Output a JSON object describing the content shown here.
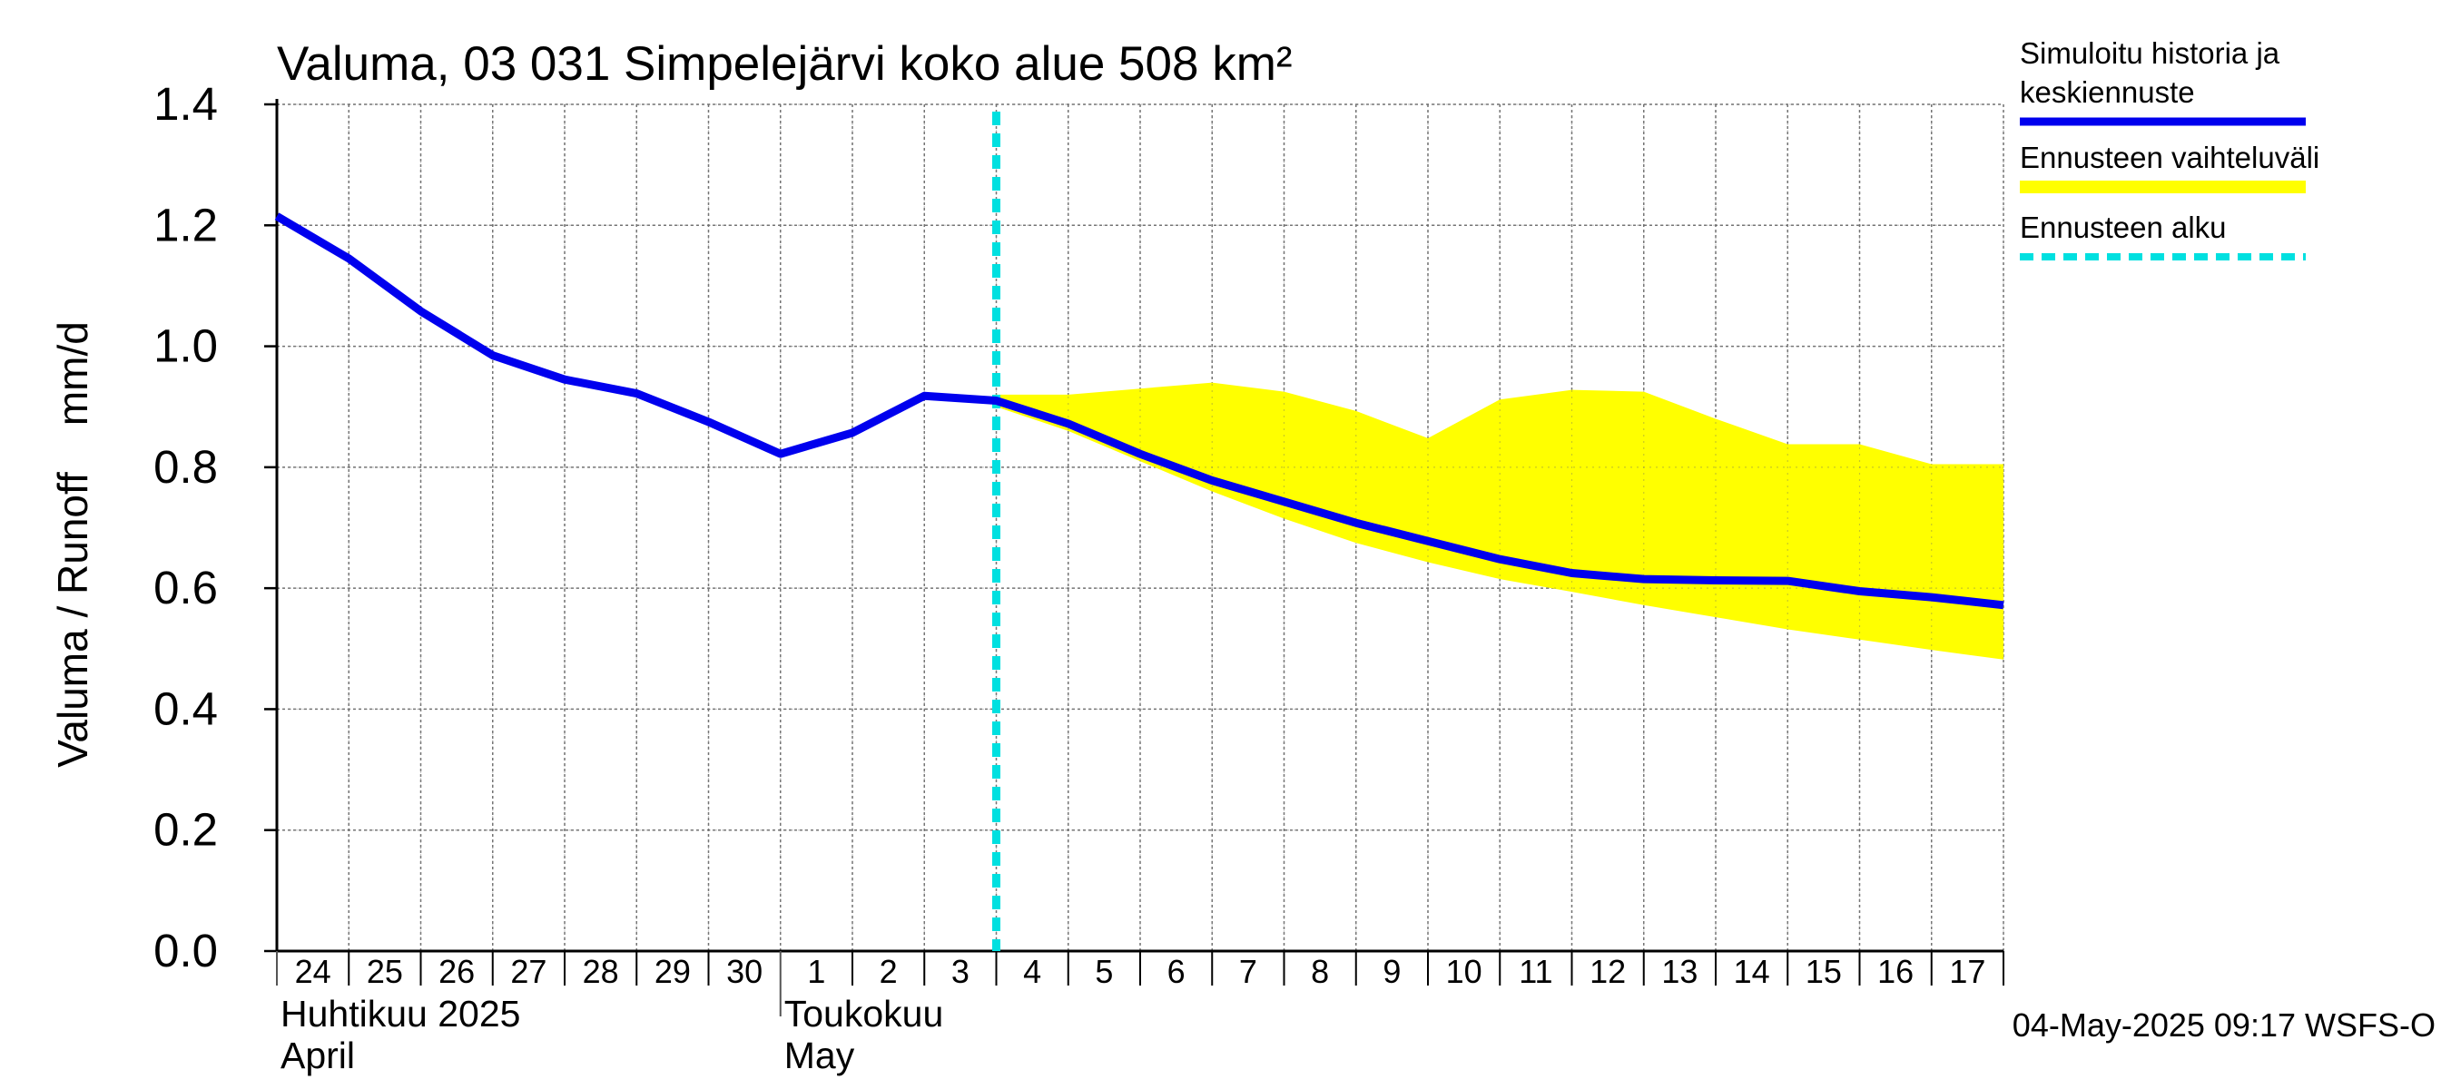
{
  "chart_data": {
    "type": "line",
    "title": "Valuma, 03 031 Simpelejärvi koko alue 508 km²",
    "ylabel": "Valuma / Runoff    mm/d",
    "ylim": [
      0.0,
      1.4
    ],
    "y_ticks": [
      "0.0",
      "0.2",
      "0.4",
      "0.6",
      "0.8",
      "1.0",
      "1.2",
      "1.4"
    ],
    "x_tick_labels": [
      "24",
      "25",
      "26",
      "27",
      "28",
      "29",
      "30",
      "1",
      "2",
      "3",
      "4",
      "5",
      "6",
      "7",
      "8",
      "9",
      "10",
      "11",
      "12",
      "13",
      "14",
      "15",
      "16",
      "17"
    ],
    "month_labels": [
      {
        "line1": "Huhtikuu  2025",
        "line2": "April"
      },
      {
        "line1": "Toukokuu",
        "line2": "May"
      }
    ],
    "dates": [
      "2025-04-24",
      "2025-04-25",
      "2025-04-26",
      "2025-04-27",
      "2025-04-28",
      "2025-04-29",
      "2025-04-30",
      "2025-05-01",
      "2025-05-02",
      "2025-05-03",
      "2025-05-04",
      "2025-05-05",
      "2025-05-06",
      "2025-05-07",
      "2025-05-08",
      "2025-05-09",
      "2025-05-10",
      "2025-05-11",
      "2025-05-12",
      "2025-05-13",
      "2025-05-14",
      "2025-05-15",
      "2025-05-16",
      "2025-05-17",
      "2025-05-18"
    ],
    "forecast_start": "2025-05-04",
    "grid": true,
    "legend_position": "right",
    "series": [
      {
        "name": "Simuloitu historia ja keskiennuste",
        "color": "#0000ee",
        "values": [
          1.215,
          1.145,
          1.058,
          0.985,
          0.945,
          0.922,
          0.875,
          0.822,
          0.857,
          0.918,
          0.91,
          0.872,
          0.822,
          0.778,
          0.743,
          0.708,
          0.678,
          0.648,
          0.625,
          0.615,
          0.613,
          0.612,
          0.595,
          0.585,
          0.572
        ]
      }
    ],
    "band": {
      "name": "Ennusteen vaihteluväli",
      "color": "#ffff00",
      "start": "2025-05-04",
      "upper": [
        0.92,
        0.92,
        0.93,
        0.94,
        0.925,
        0.893,
        0.848,
        0.912,
        0.928,
        0.925,
        0.88,
        0.838,
        0.838,
        0.805,
        0.805
      ],
      "lower": [
        0.9,
        0.86,
        0.81,
        0.76,
        0.715,
        0.675,
        0.643,
        0.615,
        0.594,
        0.572,
        0.552,
        0.532,
        0.515,
        0.498,
        0.482
      ]
    },
    "forecast_marker": {
      "name": "Ennusteen alku",
      "color": "#00e0e0"
    },
    "legend": [
      {
        "label_lines": [
          "Simuloitu historia ja",
          "keskiennuste"
        ],
        "style": "line",
        "color": "#0000ee"
      },
      {
        "label_lines": [
          "Ennusteen vaihteluväli"
        ],
        "style": "band",
        "color": "#ffff00"
      },
      {
        "label_lines": [
          "Ennusteen alku"
        ],
        "style": "dashed",
        "color": "#00e0e0"
      }
    ],
    "footer": "04-May-2025 09:17 WSFS-O"
  }
}
